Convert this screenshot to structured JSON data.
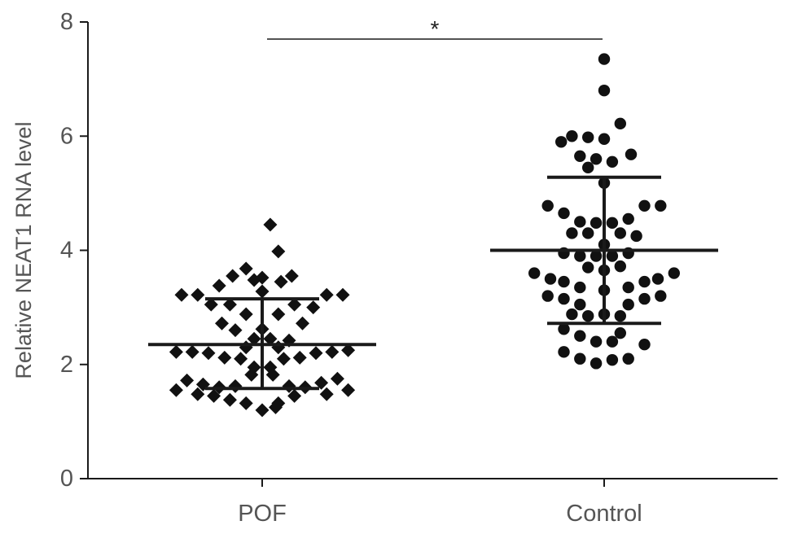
{
  "chart_data": {
    "type": "scatter",
    "ylabel": "Relative NEAT1 RNA level",
    "ylim": [
      0,
      8
    ],
    "yticks": [
      0,
      2,
      4,
      6,
      8
    ],
    "categories": [
      "POF",
      "Control"
    ],
    "significance": {
      "from": "POF",
      "to": "Control",
      "label": "*"
    },
    "groups": [
      {
        "category": "POF",
        "marker": "diamond",
        "mean": 2.35,
        "sd_low": 1.58,
        "sd_high": 3.15,
        "points": [
          {
            "dx": 0.03,
            "y": 4.45
          },
          {
            "dx": 0.06,
            "y": 3.98
          },
          {
            "dx": -0.06,
            "y": 3.68
          },
          {
            "dx": -0.11,
            "y": 3.55
          },
          {
            "dx": 0.11,
            "y": 3.55
          },
          {
            "dx": 0.0,
            "y": 3.52
          },
          {
            "dx": -0.03,
            "y": 3.48
          },
          {
            "dx": 0.07,
            "y": 3.45
          },
          {
            "dx": -0.16,
            "y": 3.38
          },
          {
            "dx": 0.0,
            "y": 3.28
          },
          {
            "dx": -0.3,
            "y": 3.22
          },
          {
            "dx": -0.24,
            "y": 3.22
          },
          {
            "dx": 0.24,
            "y": 3.22
          },
          {
            "dx": 0.3,
            "y": 3.22
          },
          {
            "dx": -0.19,
            "y": 3.05
          },
          {
            "dx": -0.12,
            "y": 3.05
          },
          {
            "dx": 0.12,
            "y": 3.05
          },
          {
            "dx": 0.19,
            "y": 3.0
          },
          {
            "dx": -0.06,
            "y": 2.88
          },
          {
            "dx": 0.06,
            "y": 2.88
          },
          {
            "dx": -0.15,
            "y": 2.72
          },
          {
            "dx": 0.15,
            "y": 2.72
          },
          {
            "dx": -0.1,
            "y": 2.6
          },
          {
            "dx": 0.0,
            "y": 2.62
          },
          {
            "dx": -0.03,
            "y": 2.45
          },
          {
            "dx": 0.03,
            "y": 2.45
          },
          {
            "dx": 0.1,
            "y": 2.42
          },
          {
            "dx": -0.06,
            "y": 2.3
          },
          {
            "dx": 0.06,
            "y": 2.3
          },
          {
            "dx": -0.32,
            "y": 2.22
          },
          {
            "dx": -0.26,
            "y": 2.22
          },
          {
            "dx": -0.2,
            "y": 2.2
          },
          {
            "dx": 0.2,
            "y": 2.2
          },
          {
            "dx": 0.26,
            "y": 2.22
          },
          {
            "dx": 0.32,
            "y": 2.25
          },
          {
            "dx": -0.14,
            "y": 2.12
          },
          {
            "dx": -0.08,
            "y": 2.1
          },
          {
            "dx": 0.08,
            "y": 2.1
          },
          {
            "dx": 0.14,
            "y": 2.12
          },
          {
            "dx": -0.03,
            "y": 1.95
          },
          {
            "dx": 0.03,
            "y": 1.95
          },
          {
            "dx": -0.04,
            "y": 1.82
          },
          {
            "dx": 0.04,
            "y": 1.82
          },
          {
            "dx": -0.28,
            "y": 1.72
          },
          {
            "dx": -0.22,
            "y": 1.65
          },
          {
            "dx": -0.16,
            "y": 1.6
          },
          {
            "dx": -0.1,
            "y": 1.62
          },
          {
            "dx": 0.1,
            "y": 1.62
          },
          {
            "dx": 0.16,
            "y": 1.6
          },
          {
            "dx": 0.22,
            "y": 1.68
          },
          {
            "dx": 0.28,
            "y": 1.75
          },
          {
            "dx": -0.32,
            "y": 1.55
          },
          {
            "dx": 0.32,
            "y": 1.55
          },
          {
            "dx": -0.24,
            "y": 1.48
          },
          {
            "dx": -0.18,
            "y": 1.45
          },
          {
            "dx": 0.12,
            "y": 1.45
          },
          {
            "dx": 0.24,
            "y": 1.48
          },
          {
            "dx": -0.12,
            "y": 1.38
          },
          {
            "dx": -0.06,
            "y": 1.32
          },
          {
            "dx": 0.06,
            "y": 1.32
          },
          {
            "dx": 0.0,
            "y": 1.2
          },
          {
            "dx": 0.05,
            "y": 1.25
          }
        ]
      },
      {
        "category": "Control",
        "marker": "circle",
        "mean": 4.0,
        "sd_low": 2.72,
        "sd_high": 5.28,
        "points": [
          {
            "dx": 0.0,
            "y": 7.35
          },
          {
            "dx": 0.0,
            "y": 6.8
          },
          {
            "dx": 0.06,
            "y": 6.22
          },
          {
            "dx": -0.12,
            "y": 6.0
          },
          {
            "dx": -0.06,
            "y": 5.98
          },
          {
            "dx": 0.0,
            "y": 5.95
          },
          {
            "dx": -0.16,
            "y": 5.9
          },
          {
            "dx": -0.09,
            "y": 5.65
          },
          {
            "dx": -0.03,
            "y": 5.6
          },
          {
            "dx": 0.03,
            "y": 5.55
          },
          {
            "dx": 0.1,
            "y": 5.68
          },
          {
            "dx": -0.06,
            "y": 5.45
          },
          {
            "dx": -0.0,
            "y": 5.18
          },
          {
            "dx": -0.21,
            "y": 4.78
          },
          {
            "dx": 0.15,
            "y": 4.78
          },
          {
            "dx": 0.21,
            "y": 4.78
          },
          {
            "dx": -0.15,
            "y": 4.65
          },
          {
            "dx": -0.09,
            "y": 4.5
          },
          {
            "dx": -0.03,
            "y": 4.48
          },
          {
            "dx": 0.03,
            "y": 4.48
          },
          {
            "dx": 0.09,
            "y": 4.55
          },
          {
            "dx": -0.12,
            "y": 4.3
          },
          {
            "dx": -0.06,
            "y": 4.3
          },
          {
            "dx": 0.06,
            "y": 4.3
          },
          {
            "dx": 0.12,
            "y": 4.25
          },
          {
            "dx": 0.0,
            "y": 4.1
          },
          {
            "dx": -0.15,
            "y": 3.95
          },
          {
            "dx": -0.09,
            "y": 3.9
          },
          {
            "dx": -0.03,
            "y": 3.9
          },
          {
            "dx": 0.03,
            "y": 3.9
          },
          {
            "dx": 0.09,
            "y": 3.95
          },
          {
            "dx": -0.06,
            "y": 3.7
          },
          {
            "dx": 0.0,
            "y": 3.65
          },
          {
            "dx": 0.06,
            "y": 3.72
          },
          {
            "dx": -0.26,
            "y": 3.6
          },
          {
            "dx": -0.2,
            "y": 3.5
          },
          {
            "dx": 0.2,
            "y": 3.5
          },
          {
            "dx": 0.26,
            "y": 3.6
          },
          {
            "dx": -0.15,
            "y": 3.45
          },
          {
            "dx": -0.09,
            "y": 3.35
          },
          {
            "dx": 0.09,
            "y": 3.35
          },
          {
            "dx": 0.15,
            "y": 3.45
          },
          {
            "dx": 0.0,
            "y": 3.3
          },
          {
            "dx": -0.21,
            "y": 3.2
          },
          {
            "dx": -0.15,
            "y": 3.15
          },
          {
            "dx": 0.15,
            "y": 3.15
          },
          {
            "dx": 0.21,
            "y": 3.2
          },
          {
            "dx": -0.09,
            "y": 3.05
          },
          {
            "dx": 0.09,
            "y": 3.05
          },
          {
            "dx": -0.12,
            "y": 2.88
          },
          {
            "dx": -0.06,
            "y": 2.85
          },
          {
            "dx": 0.0,
            "y": 2.88
          },
          {
            "dx": 0.06,
            "y": 2.85
          },
          {
            "dx": -0.15,
            "y": 2.62
          },
          {
            "dx": -0.09,
            "y": 2.5
          },
          {
            "dx": 0.06,
            "y": 2.55
          },
          {
            "dx": -0.03,
            "y": 2.4
          },
          {
            "dx": 0.03,
            "y": 2.4
          },
          {
            "dx": 0.15,
            "y": 2.35
          },
          {
            "dx": -0.15,
            "y": 2.22
          },
          {
            "dx": -0.09,
            "y": 2.1
          },
          {
            "dx": -0.03,
            "y": 2.02
          },
          {
            "dx": 0.03,
            "y": 2.08
          },
          {
            "dx": 0.09,
            "y": 2.1
          }
        ]
      }
    ]
  }
}
